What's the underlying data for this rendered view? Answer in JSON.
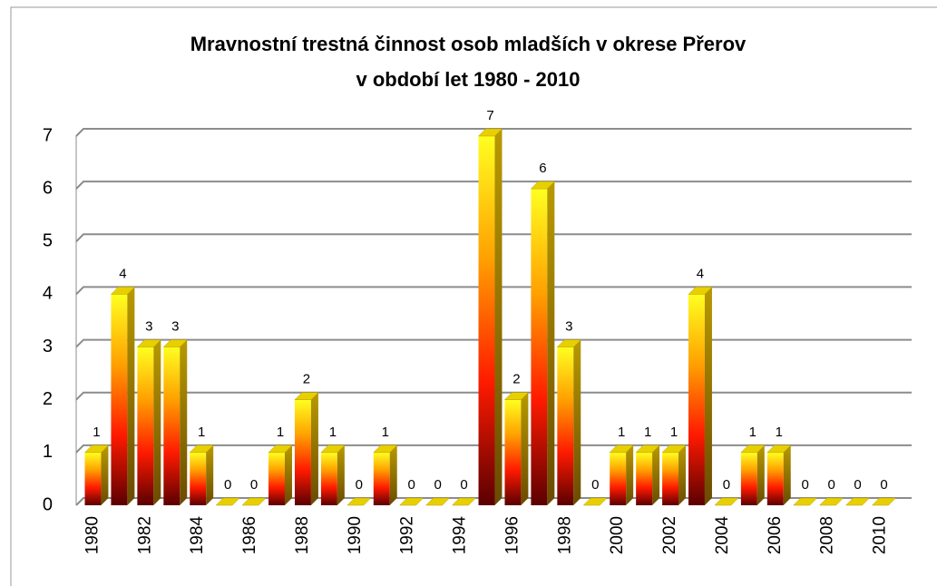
{
  "chart_data": {
    "type": "bar3d",
    "title": "Mravnostní trestná činnost osob mladších v okrese Přerov",
    "subtitle": "v období let 1980 - 2010",
    "categories": [
      "1980",
      null,
      "1982",
      null,
      "1984",
      null,
      "1986",
      null,
      "1988",
      null,
      "1990",
      null,
      "1992",
      null,
      "1994",
      null,
      "1996",
      null,
      "1998",
      null,
      "2000",
      null,
      "2002",
      null,
      "2004",
      null,
      "2006",
      null,
      "2008",
      null,
      "2010"
    ],
    "values": [
      1,
      4,
      3,
      3,
      1,
      0,
      0,
      1,
      2,
      1,
      0,
      1,
      0,
      0,
      0,
      7,
      2,
      6,
      3,
      0,
      1,
      1,
      1,
      4,
      0,
      1,
      1,
      0,
      0,
      0,
      0
    ],
    "ylim": [
      0,
      7
    ],
    "yticks": [
      0,
      1,
      2,
      3,
      4,
      5,
      6,
      7
    ],
    "grid": true,
    "colors": [
      "#5a0000",
      "#ff1a00",
      "#ffa000",
      "#ffff20"
    ],
    "side_color": "#b89a00"
  }
}
